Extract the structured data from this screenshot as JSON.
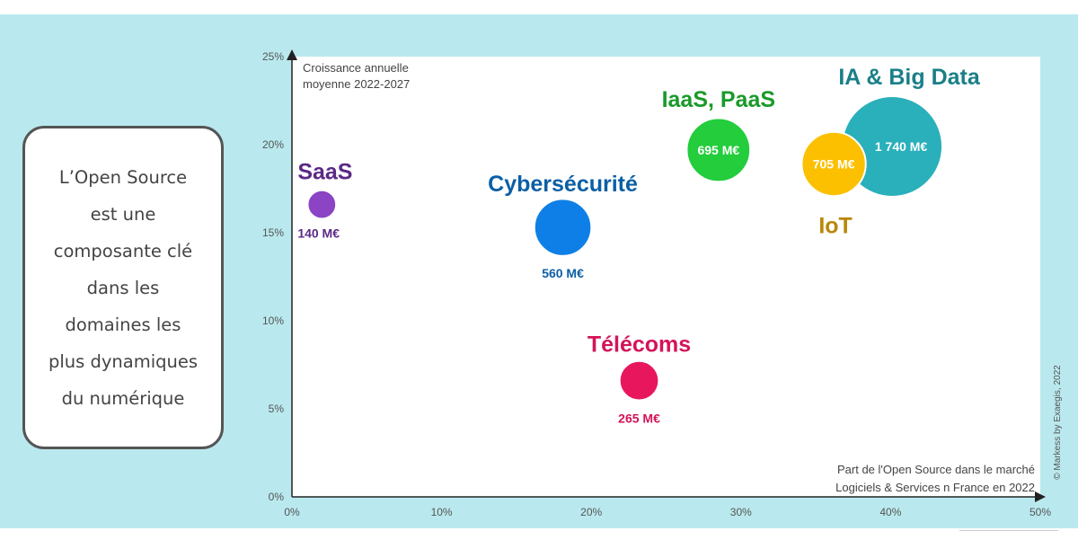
{
  "callout": {
    "text": "L’Open Source\nest une\ncomposante clé\ndans les\ndomaines les\nplus dynamiques\ndu numérique"
  },
  "credit": "© Markess by Exaegis, 2022",
  "colors": {
    "background": "#b9e9ee",
    "plot": "#ffffff"
  },
  "chart_data": {
    "type": "scatter",
    "title": "",
    "ylabel": "Croissance annuelle\nmoyenne 2022-2027",
    "xlabel": "Part de l'Open Source dans le marché\nLogiciels & Services n France en 2022",
    "xlim": [
      0,
      50
    ],
    "ylim": [
      0,
      25
    ],
    "x_ticks": [
      "0%",
      "10%",
      "20%",
      "30%",
      "40%",
      "50%"
    ],
    "y_ticks": [
      "0%",
      "5%",
      "10%",
      "15%",
      "20%",
      "25%"
    ],
    "grid": false,
    "series": [
      {
        "name": "SaaS",
        "x": 2.0,
        "y": 16.6,
        "value": "140 M€",
        "size_meur": 140,
        "color": "#8b44c4",
        "label_color": "#5b2a86"
      },
      {
        "name": "Cybersécurité",
        "x": 18.1,
        "y": 15.3,
        "value": "560 M€",
        "size_meur": 560,
        "color": "#0e7fe6",
        "label_color": "#0b5fa5"
      },
      {
        "name": "Télécoms",
        "x": 23.2,
        "y": 6.6,
        "value": "265 M€",
        "size_meur": 265,
        "color": "#e8175d",
        "label_color": "#d4145a"
      },
      {
        "name": "IaaS, PaaS",
        "x": 28.5,
        "y": 19.7,
        "value": "695 M€",
        "size_meur": 695,
        "color": "#23cd3c",
        "label_color": "#1a9a2a"
      },
      {
        "name": "IA & Big Data",
        "x": 40.1,
        "y": 19.9,
        "value": "1 740 M€",
        "size_meur": 1740,
        "color": "#2ab0bb",
        "label_color": "#1a7f88"
      },
      {
        "name": "IoT",
        "x": 36.2,
        "y": 18.9,
        "value": "705 M€",
        "size_meur": 705,
        "color": "#fcc000",
        "label_color": "#b8880a"
      }
    ]
  }
}
